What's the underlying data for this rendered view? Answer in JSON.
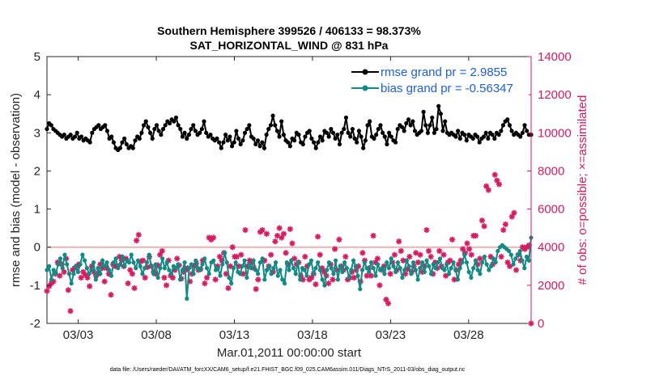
{
  "chart_data": {
    "type": "line",
    "title_line1": "Southern Hemisphere 399526 / 406133 = 98.373%",
    "title_line2": "SAT_HORIZONTAL_WIND @ 831 hPa",
    "ylabel_left": "rmse and bias (model - observation)",
    "ylabel_right": "# of obs: o=possible; ×=assimilated",
    "xlabel": "Mar.01,2011 00:00:00 start",
    "footnote": "data file: /Users/raeder/DAI/ATM_forcXX/CAM6_setup/f.e21.FHIST_BGC.f09_025.CAM6assim.011/Diags_NTrS_2011-03/obs_diag_output.nc",
    "x_range": [
      1.0,
      32.0
    ],
    "ylim_left": [
      -2,
      5
    ],
    "ylim_right": [
      0,
      14000
    ],
    "left_ticks": [
      "-2",
      "-1",
      "0",
      "1",
      "2",
      "3",
      "4",
      "5"
    ],
    "right_ticks": [
      "0",
      "2000",
      "4000",
      "6000",
      "8000",
      "10000",
      "12000",
      "14000"
    ],
    "x_ticks": [
      {
        "day": 3,
        "label": "03/03"
      },
      {
        "day": 8,
        "label": "03/08"
      },
      {
        "day": 13,
        "label": "03/13"
      },
      {
        "day": 18,
        "label": "03/18"
      },
      {
        "day": 23,
        "label": "03/23"
      },
      {
        "day": 28,
        "label": "03/28"
      }
    ],
    "zero_line": 0,
    "colors": {
      "rmse": "#000000",
      "bias": "#0f8a84",
      "obs": "#d81b60",
      "zero": "#e8b4b4",
      "legend_text": "#1f5fd6"
    },
    "series": [
      {
        "name": "rmse grand pr = 2.9855",
        "axis": "left",
        "marker": "circle",
        "values": [
          3.1,
          3.25,
          3.2,
          3.1,
          3.05,
          3.0,
          2.95,
          2.9,
          2.95,
          2.85,
          2.9,
          2.95,
          2.85,
          2.9,
          3.0,
          2.85,
          2.9,
          2.8,
          2.85,
          2.8,
          2.75,
          3.0,
          3.1,
          3.15,
          3.2,
          3.1,
          3.15,
          3.2,
          3.05,
          2.85,
          2.9,
          2.75,
          2.6,
          2.55,
          2.6,
          2.75,
          2.85,
          2.7,
          2.6,
          2.65,
          2.6,
          2.8,
          2.9,
          2.85,
          3.0,
          3.2,
          3.3,
          3.15,
          3.0,
          2.85,
          3.1,
          3.2,
          3.05,
          2.95,
          3.1,
          3.2,
          3.3,
          3.25,
          3.35,
          3.3,
          3.4,
          3.2,
          3.1,
          2.9,
          3.0,
          2.85,
          2.95,
          3.1,
          3.2,
          3.05,
          2.95,
          3.0,
          3.1,
          3.3,
          3.0,
          2.9,
          2.95,
          2.85,
          2.8,
          2.85,
          2.75,
          2.6,
          2.75,
          2.95,
          2.8,
          2.9,
          2.65,
          2.75,
          3.05,
          2.85,
          2.7,
          2.8,
          3.0,
          3.1,
          3.2,
          2.9,
          2.85,
          2.7,
          2.8,
          2.65,
          2.75,
          2.6,
          2.95,
          3.1,
          3.2,
          3.45,
          3.2,
          3.05,
          2.9,
          3.3,
          2.95,
          2.8,
          2.75,
          2.65,
          2.85,
          2.8,
          3.0,
          2.95,
          2.75,
          2.7,
          2.9,
          3.0,
          3.05,
          2.85,
          2.75,
          2.6,
          2.75,
          2.9,
          2.8,
          3.05,
          3.0,
          2.9,
          3.1,
          3.0,
          2.85,
          2.95,
          2.7,
          3.0,
          3.1,
          3.4,
          3.0,
          2.9,
          3.1,
          2.85,
          2.75,
          3.05,
          2.9,
          2.6,
          2.8,
          3.2,
          3.3,
          2.9,
          2.85,
          2.95,
          3.1,
          3.2,
          3.0,
          2.9,
          2.7,
          3.0,
          2.9,
          2.8,
          2.75,
          3.1,
          3.2,
          3.15,
          3.05,
          3.25,
          3.35,
          3.2,
          3.3,
          3.05,
          2.95,
          3.0,
          3.05,
          3.55,
          3.2,
          3.0,
          3.2,
          3.4,
          3.0,
          3.1,
          3.7,
          3.5,
          3.05,
          3.3,
          3.0,
          2.95,
          3.0,
          2.95,
          2.9,
          3.05,
          2.85,
          3.0,
          2.95,
          2.8,
          2.95,
          2.9,
          2.85,
          2.95,
          2.9,
          2.75,
          2.85,
          2.9,
          3.0,
          2.85,
          3.0,
          2.95,
          2.85,
          3.0,
          2.95,
          3.05,
          3.2,
          3.3,
          3.35,
          3.2,
          3.05,
          2.95,
          3.0,
          2.95,
          2.9,
          3.0,
          3.2,
          3.05,
          2.95,
          2.95
        ]
      },
      {
        "name": "bias grand pr = -0.56347",
        "axis": "left",
        "marker": "circle",
        "values": [
          -0.6,
          -0.5,
          -0.85,
          -0.6,
          -0.7,
          -0.45,
          -0.3,
          -0.55,
          -0.2,
          -0.45,
          -0.7,
          -0.95,
          -0.7,
          -0.5,
          -0.65,
          -0.45,
          -0.2,
          -0.35,
          -0.55,
          -0.7,
          -0.6,
          -0.4,
          -0.85,
          -0.55,
          -0.7,
          -0.35,
          -0.5,
          -0.4,
          -0.6,
          -0.75,
          -0.4,
          -0.3,
          -0.55,
          -0.45,
          -0.25,
          -0.5,
          -0.35,
          -0.4,
          -0.2,
          -0.4,
          -0.55,
          -0.35,
          -0.5,
          -0.7,
          -0.55,
          -0.4,
          -0.2,
          -0.5,
          -0.7,
          -0.45,
          -0.8,
          -0.55,
          -0.3,
          -0.55,
          -0.4,
          -0.6,
          -0.7,
          -0.5,
          -0.55,
          -0.45,
          -0.85,
          -0.6,
          -0.4,
          -1.35,
          -0.55,
          -0.45,
          -0.7,
          -0.35,
          -0.55,
          -0.6,
          -0.45,
          -0.3,
          -0.55,
          -0.7,
          -0.4,
          -0.35,
          -0.6,
          -0.55,
          -0.75,
          -0.45,
          -0.15,
          -0.4,
          -0.8,
          -0.95,
          -0.55,
          -0.4,
          -0.65,
          -0.7,
          -0.5,
          -0.35,
          -0.8,
          -0.45,
          -0.55,
          -0.35,
          -0.6,
          -0.7,
          -0.4,
          -0.3,
          -0.85,
          -0.6,
          -0.5,
          -0.7,
          -0.55,
          -0.4,
          -0.75,
          -0.6,
          -0.85,
          -0.95,
          -0.4,
          -0.6,
          -0.35,
          -0.55,
          -0.7,
          -0.4,
          -0.85,
          -0.55,
          -0.6,
          -0.75,
          -0.45,
          -0.35,
          -0.7,
          -0.55,
          -0.4,
          -0.6,
          -0.85,
          -1.0,
          -0.6,
          -0.4,
          -0.55,
          -0.7,
          -0.35,
          -0.85,
          -0.5,
          -0.65,
          -0.4,
          -0.55,
          -0.8,
          -0.6,
          -0.35,
          -0.5,
          -0.75,
          -1.1,
          -0.6,
          -0.4,
          -0.55,
          -0.65,
          -0.4,
          -0.55,
          -0.75,
          -0.45,
          -0.6,
          -0.55,
          -0.7,
          -0.4,
          -0.55,
          -0.3,
          -0.5,
          -0.65,
          -0.4,
          -0.55,
          -0.8,
          -0.6,
          -0.35,
          -0.5,
          -0.7,
          -0.4,
          -0.6,
          -0.85,
          -0.55,
          -0.4,
          -0.65,
          -0.35,
          -0.5,
          -0.7,
          -0.45,
          -0.55,
          -0.4,
          -0.3,
          -0.55,
          -0.6,
          -0.45,
          -0.7,
          -0.55,
          -0.4,
          -0.6,
          -0.85,
          -0.55,
          -0.4,
          -0.2,
          -0.4,
          -0.65,
          -0.8,
          -0.55,
          -0.35,
          -0.6,
          -0.7,
          -0.4,
          -0.25,
          -0.45,
          -0.6,
          -0.5,
          -0.3,
          -0.4,
          -0.1,
          0.0,
          0.05,
          0.0,
          -0.05,
          -0.1,
          -0.2,
          -0.45,
          -0.3,
          -0.2,
          -0.1,
          -0.35,
          -0.55,
          -0.25,
          -0.35,
          0.25
        ]
      },
      {
        "name": "obs possible/assimilated",
        "axis": "right",
        "marker": "star",
        "values": [
          1700,
          1950,
          2100,
          2200,
          2600,
          3200,
          2500,
          3100,
          2700,
          3400,
          1750,
          650,
          2800,
          2900,
          3000,
          3100,
          2400,
          2700,
          2550,
          2400,
          1950,
          3000,
          2700,
          2500,
          2600,
          3100,
          2900,
          2200,
          2900,
          2600,
          1500,
          3100,
          3000,
          3000,
          3500,
          3300,
          3000,
          3400,
          2100,
          2800,
          2600,
          1850,
          4350,
          4650,
          3250,
          3300,
          2400,
          2950,
          3500,
          3000,
          2700,
          2600,
          3050,
          3600,
          3800,
          2400,
          2000,
          3300,
          2500,
          2400,
          2800,
          3400,
          3050,
          2350,
          2700,
          2800,
          2900,
          2200,
          2600,
          3000,
          3150,
          2800,
          2850,
          3300,
          2100,
          2400,
          4500,
          4400,
          4500,
          2300,
          3000,
          3500,
          3300,
          3700,
          2600,
          1850,
          3000,
          4000,
          3500,
          3500,
          3000,
          3600,
          2600,
          4900,
          3000,
          3300,
          3200,
          2900,
          1800,
          2300,
          4800,
          4900,
          3300,
          4700,
          3000,
          3600,
          2700,
          4300,
          4600,
          5000,
          4500,
          4700,
          3700,
          3100,
          4950,
          4200,
          3400,
          3100,
          3200,
          2500,
          2300,
          3500,
          3000,
          2300,
          2400,
          2600,
          2050,
          4550,
          3600,
          2900,
          2700,
          2500,
          2100,
          3100,
          2300,
          3900,
          2800,
          4400,
          3000,
          2800,
          3500,
          2300,
          2400,
          2700,
          2400,
          2800,
          3000,
          2200,
          3700,
          3300,
          2500,
          2900,
          2500,
          4600,
          3200,
          3400,
          2000,
          2800,
          3000,
          1250,
          1050,
          2600,
          3200,
          3600,
          2800,
          4300,
          3800,
          3300,
          2600,
          2850,
          3500,
          2700,
          3000,
          3700,
          3200,
          3600,
          2700,
          3000,
          4900,
          3800,
          3500,
          2600,
          3200,
          2900,
          3800,
          3000,
          3600,
          2500,
          3200,
          3300,
          4400,
          2300,
          2800,
          3100,
          3300,
          3900,
          3700,
          4200,
          3900,
          3600,
          4600,
          4600,
          3100,
          3400,
          5400,
          5100,
          7200,
          7000,
          3500,
          3100,
          7800,
          7500,
          7300,
          3500,
          4900,
          5200,
          3200,
          3000,
          5600,
          5800,
          2800,
          3600,
          3300,
          4000,
          3900,
          4000,
          4100,
          0
        ]
      }
    ],
    "legend": [
      "rmse grand pr = 2.9855",
      "bias grand pr = -0.56347"
    ],
    "legend_position": "top-right",
    "grid": false
  }
}
